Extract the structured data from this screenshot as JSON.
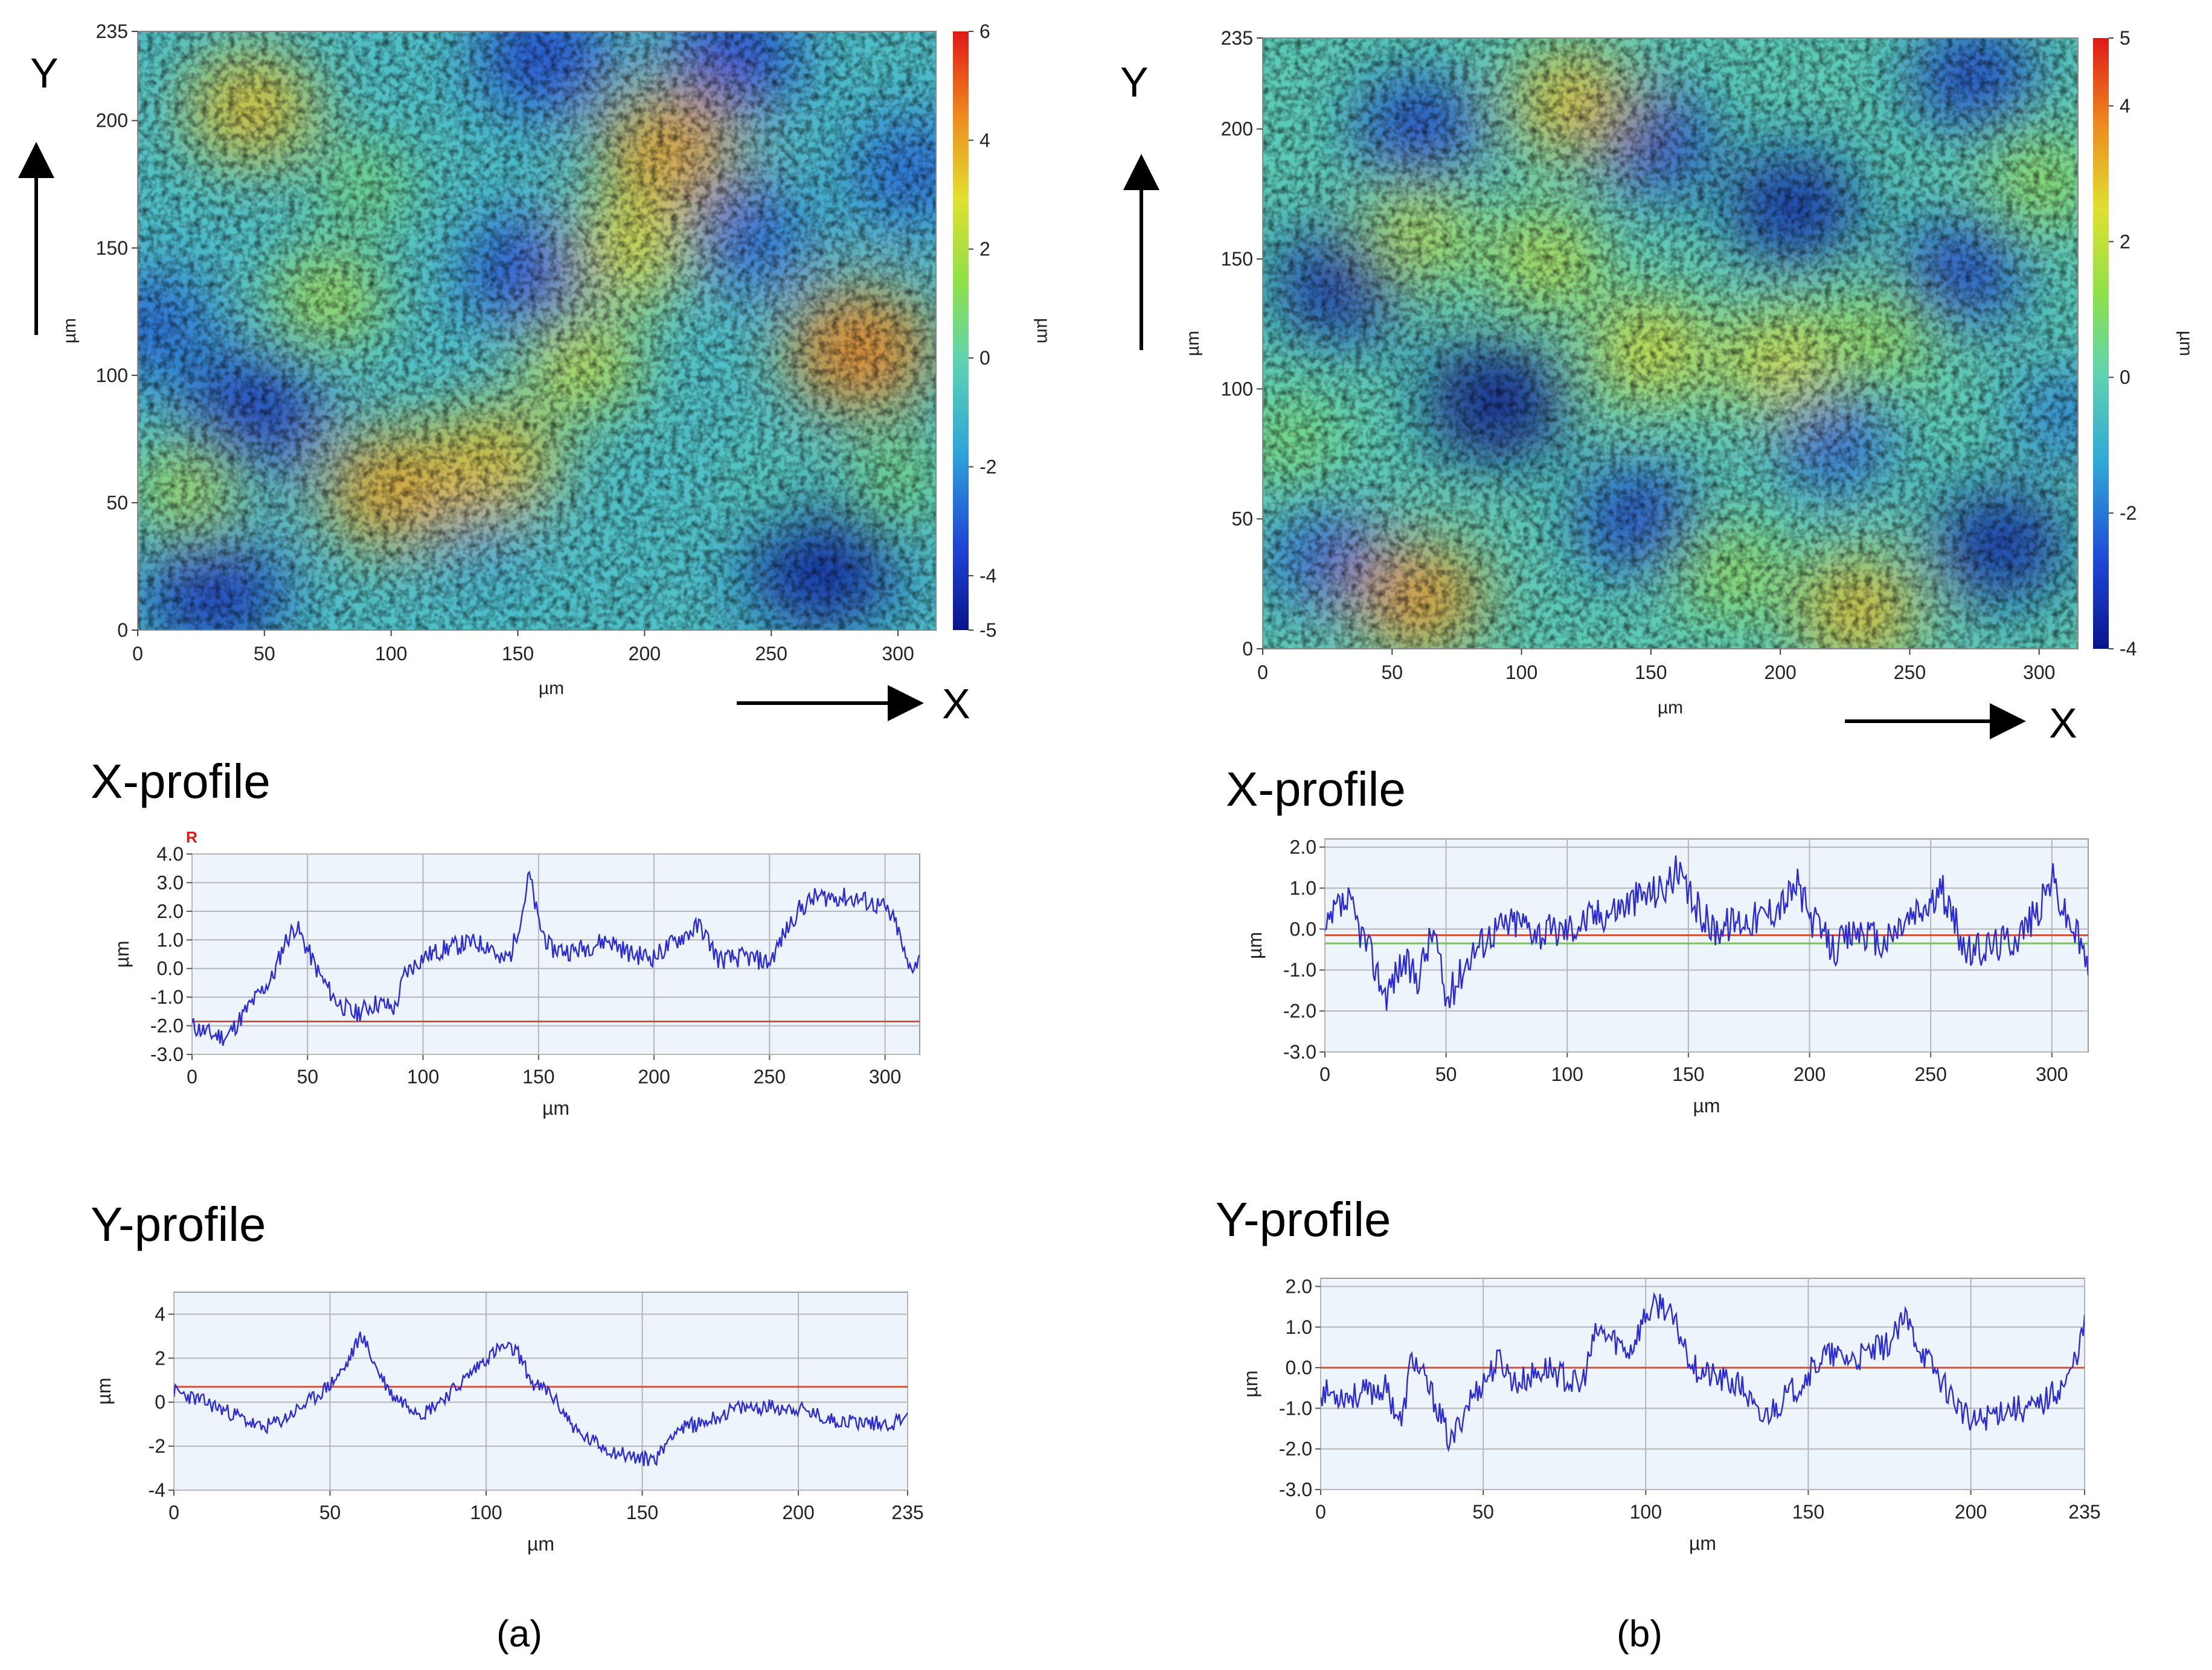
{
  "chart_data": [
    {
      "panel": "a",
      "type": "heatmap",
      "title": "",
      "y_axis_letter": "Y",
      "x_axis_letter": "X",
      "xlabel": "µm",
      "ylabel": "µm",
      "colorbar_label": "µm",
      "xlim": [
        0,
        315
      ],
      "ylim": [
        0,
        235
      ],
      "x_ticks": [
        0,
        50,
        100,
        150,
        200,
        250,
        300
      ],
      "y_ticks": [
        0,
        50,
        100,
        150,
        200,
        235
      ],
      "colorbar_range": [
        -5,
        6
      ],
      "colorbar_ticks": [
        -5,
        -4,
        -2,
        0,
        2,
        4,
        6
      ],
      "cells": [
        {
          "x": 45,
          "y": 85,
          "value": -4
        },
        {
          "x": 30,
          "y": 15,
          "value": -4
        },
        {
          "x": 160,
          "y": 225,
          "value": -3.5
        },
        {
          "x": 235,
          "y": 225,
          "value": -3.5
        },
        {
          "x": 270,
          "y": 25,
          "value": -4.5
        },
        {
          "x": 155,
          "y": 140,
          "value": -3.5
        },
        {
          "x": 240,
          "y": 155,
          "value": -3
        },
        {
          "x": 135,
          "y": 40,
          "value": -2
        },
        {
          "x": 5,
          "y": 120,
          "value": -3
        },
        {
          "x": 305,
          "y": 180,
          "value": -3
        },
        {
          "x": 45,
          "y": 205,
          "value": 3.5
        },
        {
          "x": 100,
          "y": 55,
          "value": 4
        },
        {
          "x": 140,
          "y": 65,
          "value": 3.5
        },
        {
          "x": 210,
          "y": 190,
          "value": 4
        },
        {
          "x": 285,
          "y": 110,
          "value": 4.5
        },
        {
          "x": 195,
          "y": 150,
          "value": 3
        },
        {
          "x": 175,
          "y": 105,
          "value": 2.5
        },
        {
          "x": 75,
          "y": 130,
          "value": 2
        },
        {
          "x": 20,
          "y": 55,
          "value": 2
        },
        {
          "x": 90,
          "y": 175,
          "value": 1
        },
        {
          "x": 300,
          "y": 60,
          "value": 1
        },
        {
          "x": 250,
          "y": 60,
          "value": 0
        }
      ]
    },
    {
      "panel": "a",
      "type": "line",
      "title": "X-profile",
      "marker": "R",
      "xlabel": "µm",
      "ylabel": "µm",
      "xlim": [
        0,
        315
      ],
      "ylim": [
        -3.0,
        4.0
      ],
      "x_ticks": [
        0,
        50,
        100,
        150,
        200,
        250,
        300
      ],
      "y_ticks": [
        "-3.0",
        "-2.0",
        "-1.0",
        "0.0",
        "1.0",
        "2.0",
        "3.0",
        "4.0"
      ],
      "reference_line": -1.85,
      "series": [
        {
          "name": "X-profile",
          "color": "#2b2bd6",
          "noise": 0.35,
          "x": [
            0,
            8,
            15,
            25,
            35,
            40,
            45,
            55,
            62,
            70,
            80,
            88,
            92,
            100,
            110,
            120,
            130,
            133,
            138,
            143,
            146,
            150,
            155,
            165,
            180,
            190,
            200,
            210,
            220,
            228,
            240,
            250,
            255,
            262,
            270,
            280,
            290,
            300,
            305,
            310,
            315
          ],
          "values": [
            -2.0,
            -2.3,
            -2.4,
            -1.3,
            -0.3,
            0.9,
            1.5,
            -0.2,
            -1.1,
            -1.6,
            -1.2,
            -1.4,
            -0.2,
            0.4,
            0.7,
            0.9,
            0.8,
            0.2,
            0.5,
            2.0,
            3.3,
            1.6,
            0.7,
            0.6,
            1.0,
            0.5,
            0.4,
            1.0,
            1.5,
            0.3,
            0.4,
            0.2,
            1.0,
            2.0,
            2.5,
            2.5,
            2.4,
            2.1,
            1.5,
            0.0,
            0.3
          ]
        }
      ]
    },
    {
      "panel": "a",
      "type": "line",
      "title": "Y-profile",
      "xlabel": "µm",
      "ylabel": "µm",
      "xlim": [
        0,
        235
      ],
      "ylim": [
        -4,
        5
      ],
      "x_ticks": [
        0,
        50,
        100,
        150,
        200,
        235
      ],
      "y_ticks": [
        "-4",
        "-2",
        "0",
        "2",
        "4"
      ],
      "reference_line": 0.7,
      "series": [
        {
          "name": "Y-profile",
          "color": "#2b2bd6",
          "noise": 0.35,
          "x": [
            0,
            10,
            20,
            28,
            35,
            45,
            50,
            55,
            60,
            65,
            70,
            80,
            90,
            100,
            105,
            110,
            115,
            120,
            130,
            140,
            150,
            155,
            160,
            170,
            180,
            190,
            200,
            210,
            220,
            230,
            235
          ],
          "values": [
            0.5,
            0.0,
            -0.6,
            -1.2,
            -0.8,
            0.2,
            0.8,
            1.6,
            3.1,
            1.5,
            0.3,
            -0.5,
            0.6,
            2.0,
            2.5,
            2.3,
            0.8,
            0.5,
            -1.5,
            -2.2,
            -2.6,
            -2.5,
            -1.3,
            -0.9,
            -0.3,
            -0.2,
            -0.3,
            -0.8,
            -0.9,
            -1.0,
            -0.5
          ]
        }
      ]
    },
    {
      "panel": "b",
      "type": "heatmap",
      "title": "",
      "y_axis_letter": "Y",
      "x_axis_letter": "X",
      "xlabel": "µm",
      "ylabel": "µm",
      "colorbar_label": "µm",
      "xlim": [
        0,
        315
      ],
      "ylim": [
        0,
        235
      ],
      "x_ticks": [
        0,
        50,
        100,
        150,
        200,
        250,
        300
      ],
      "y_ticks": [
        0,
        50,
        100,
        150,
        200,
        235
      ],
      "colorbar_range": [
        -4,
        5
      ],
      "colorbar_ticks": [
        -4,
        -2,
        0,
        2,
        4,
        5
      ],
      "cells": [
        {
          "x": 90,
          "y": 95,
          "value": -4
        },
        {
          "x": 30,
          "y": 140,
          "value": -3.5
        },
        {
          "x": 60,
          "y": 200,
          "value": -3
        },
        {
          "x": 150,
          "y": 195,
          "value": -3
        },
        {
          "x": 205,
          "y": 170,
          "value": -3.5
        },
        {
          "x": 275,
          "y": 220,
          "value": -3
        },
        {
          "x": 270,
          "y": 145,
          "value": -3
        },
        {
          "x": 285,
          "y": 40,
          "value": -3.5
        },
        {
          "x": 145,
          "y": 50,
          "value": -3
        },
        {
          "x": 220,
          "y": 80,
          "value": -2.5
        },
        {
          "x": 25,
          "y": 35,
          "value": -2.5
        },
        {
          "x": 310,
          "y": 90,
          "value": -2
        },
        {
          "x": 60,
          "y": 20,
          "value": 3.5
        },
        {
          "x": 230,
          "y": 15,
          "value": 3
        },
        {
          "x": 150,
          "y": 115,
          "value": 2.5
        },
        {
          "x": 110,
          "y": 150,
          "value": 2
        },
        {
          "x": 200,
          "y": 110,
          "value": 2.5
        },
        {
          "x": 120,
          "y": 210,
          "value": 3
        },
        {
          "x": 60,
          "y": 160,
          "value": 2
        },
        {
          "x": 240,
          "y": 120,
          "value": 1.5
        },
        {
          "x": 300,
          "y": 180,
          "value": 1.5
        },
        {
          "x": 180,
          "y": 30,
          "value": 1.5
        },
        {
          "x": 10,
          "y": 80,
          "value": 1
        }
      ]
    },
    {
      "panel": "b",
      "type": "line",
      "title": "X-profile",
      "xlabel": "µm",
      "ylabel": "µm",
      "xlim": [
        0,
        315
      ],
      "ylim": [
        -3.0,
        2.2
      ],
      "x_ticks": [
        0,
        50,
        100,
        150,
        200,
        250,
        300
      ],
      "y_ticks": [
        "-3.0",
        "-2.0",
        "-1.0",
        "0.0",
        "1.0",
        "2.0"
      ],
      "reference_line": -0.15,
      "reference_line_2": -0.35,
      "series": [
        {
          "name": "X-profile",
          "color": "#2b2bd6",
          "noise": 0.45,
          "x": [
            0,
            5,
            10,
            18,
            25,
            32,
            38,
            45,
            50,
            55,
            60,
            70,
            80,
            90,
            100,
            110,
            120,
            130,
            140,
            145,
            150,
            160,
            170,
            180,
            190,
            195,
            200,
            210,
            220,
            230,
            240,
            250,
            255,
            265,
            275,
            285,
            295,
            300,
            305,
            310,
            315
          ],
          "values": [
            -0.2,
            0.5,
            0.6,
            -0.5,
            -1.6,
            -0.8,
            -1.2,
            0.0,
            -1.8,
            -1.2,
            -0.6,
            0.0,
            0.2,
            -0.1,
            0.0,
            0.3,
            0.5,
            0.8,
            1.0,
            1.4,
            0.8,
            0.0,
            0.2,
            0.3,
            0.7,
            1.1,
            0.3,
            -0.5,
            0.0,
            -0.4,
            0.2,
            0.6,
            0.9,
            -0.6,
            -0.4,
            -0.2,
            0.5,
            1.3,
            0.4,
            -0.1,
            -0.9
          ]
        }
      ]
    },
    {
      "panel": "b",
      "type": "line",
      "title": "Y-profile",
      "xlabel": "µm",
      "ylabel": "µm",
      "xlim": [
        0,
        235
      ],
      "ylim": [
        -3.0,
        2.2
      ],
      "x_ticks": [
        0,
        50,
        100,
        150,
        200,
        235
      ],
      "y_ticks": [
        "-3.0",
        "-2.0",
        "-1.0",
        "0.0",
        "1.0",
        "2.0"
      ],
      "reference_line": 0.0,
      "series": [
        {
          "name": "Y-profile",
          "color": "#2b2bd6",
          "noise": 0.35,
          "x": [
            0,
            10,
            20,
            25,
            28,
            35,
            40,
            45,
            55,
            60,
            70,
            80,
            85,
            90,
            95,
            100,
            105,
            110,
            115,
            120,
            130,
            135,
            145,
            155,
            165,
            175,
            180,
            185,
            190,
            200,
            210,
            220,
            230,
            235
          ],
          "values": [
            -0.6,
            -0.7,
            -0.5,
            -1.4,
            0.3,
            -0.8,
            -1.9,
            -0.9,
            0.2,
            -0.4,
            0.0,
            -0.5,
            0.9,
            0.7,
            0.4,
            1.3,
            1.6,
            0.9,
            0.0,
            -0.2,
            -0.5,
            -1.3,
            -0.6,
            0.3,
            0.2,
            0.6,
            1.2,
            0.4,
            -0.2,
            -1.4,
            -1.0,
            -1.0,
            -0.3,
            1.0
          ]
        }
      ]
    }
  ],
  "labels": {
    "panel_a": "(a)",
    "panel_b": "(b)"
  }
}
